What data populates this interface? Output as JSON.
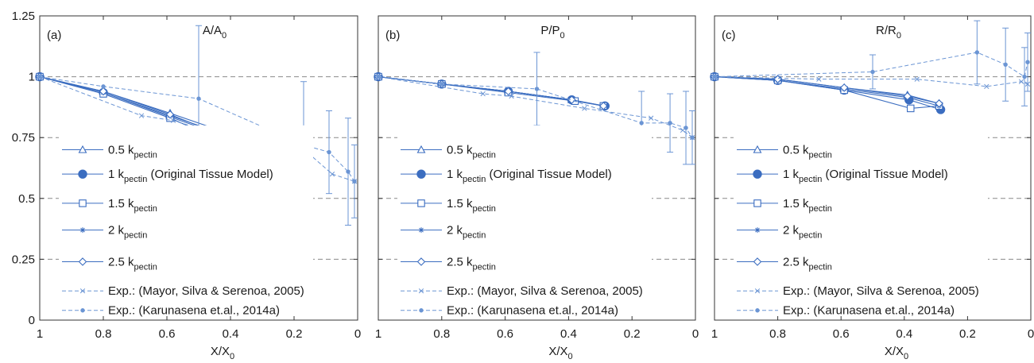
{
  "figure": {
    "colors": {
      "series": "#3b6dc0",
      "exp": "#6b95d4",
      "refline": "#8a8a8a",
      "axis": "#333333",
      "legend_box": "#ffffff"
    }
  },
  "chart_data": [
    {
      "type": "line",
      "panel_label": "(a)",
      "title": "A/A",
      "title_sub": "0",
      "xlabel": "X/X",
      "xlabel_sub": "0",
      "xlim": [
        1,
        0
      ],
      "ylim": [
        0,
        1.25
      ],
      "xticks": [
        1,
        0.8,
        0.6,
        0.4,
        0.2,
        0
      ],
      "yticks": [
        0,
        0.25,
        0.5,
        0.75,
        1,
        1.25
      ],
      "ytick_labels": [
        "0",
        "0.25",
        "0.5",
        "0.75",
        "1",
        "1.25"
      ],
      "reference_lines_y": [
        1,
        0.75,
        0.5,
        0.25
      ],
      "show_y_tick_labels": true,
      "series": [
        {
          "name": "0.5 k",
          "name_sub": "pectin",
          "marker": "triangle",
          "line": "solid",
          "x": [
            1,
            0.8,
            0.59,
            0.39,
            0.29
          ],
          "y": [
            1,
            0.94,
            0.85,
            0.76,
            0.69
          ]
        },
        {
          "name": "1 k",
          "name_sub": "pectin",
          "name_suffix": " (Original Tissue Model)",
          "marker": "filled-circle",
          "line": "solid",
          "x": [
            1,
            0.8,
            0.59,
            0.385,
            0.285
          ],
          "y": [
            1,
            0.935,
            0.835,
            0.74,
            0.67
          ]
        },
        {
          "name": "1.5 k",
          "name_sub": "pectin",
          "marker": "square",
          "line": "solid",
          "x": [
            1,
            0.8,
            0.59,
            0.38,
            0.29
          ],
          "y": [
            1,
            0.93,
            0.83,
            0.71,
            0.68
          ]
        },
        {
          "name": "2 k",
          "name_sub": "pectin",
          "marker": "star",
          "line": "solid",
          "x": [
            1,
            0.8,
            0.59,
            0.39,
            0.29
          ],
          "y": [
            1,
            0.935,
            0.84,
            0.75,
            0.68
          ]
        },
        {
          "name": "2.5 k",
          "name_sub": "pectin",
          "marker": "diamond",
          "line": "solid",
          "x": [
            1,
            0.8,
            0.59,
            0.39,
            0.29
          ],
          "y": [
            1,
            0.94,
            0.845,
            0.74,
            0.69
          ]
        },
        {
          "name": "Exp.: (Mayor, Silva & Serenoa, 2005)",
          "marker": "x",
          "line": "dashed",
          "x": [
            1,
            0.68,
            0.58,
            0.38,
            0.15,
            0.08,
            0.01
          ],
          "y": [
            1,
            0.84,
            0.82,
            0.74,
            0.68,
            0.6,
            0.57
          ]
        },
        {
          "name": "Exp.: (Karunasena et.al., 2014a)",
          "marker": "dot",
          "line": "dashed",
          "x": [
            1,
            0.8,
            0.5,
            0.17,
            0.09,
            0.03,
            0.01
          ],
          "y": [
            1,
            0.96,
            0.91,
            0.72,
            0.69,
            0.61,
            0.57
          ],
          "err": [
            0,
            0,
            0.3,
            0.26,
            0.17,
            0.22,
            0.15
          ]
        }
      ]
    },
    {
      "type": "line",
      "panel_label": "(b)",
      "title": "P/P",
      "title_sub": "0",
      "xlabel": "X/X",
      "xlabel_sub": "0",
      "xlim": [
        1,
        0
      ],
      "ylim": [
        0,
        1.25
      ],
      "xticks": [
        1,
        0.8,
        0.6,
        0.4,
        0.2,
        0
      ],
      "yticks": [
        0,
        0.25,
        0.5,
        0.75,
        1,
        1.25
      ],
      "reference_lines_y": [
        1,
        0.75,
        0.5,
        0.25
      ],
      "show_y_tick_labels": false,
      "series": [
        {
          "name": "0.5 k",
          "name_sub": "pectin",
          "marker": "triangle",
          "line": "solid",
          "x": [
            1,
            0.8,
            0.59,
            0.39,
            0.29
          ],
          "y": [
            1,
            0.97,
            0.94,
            0.905,
            0.88
          ]
        },
        {
          "name": "1 k",
          "name_sub": "pectin",
          "name_suffix": " (Original Tissue Model)",
          "marker": "filled-circle",
          "line": "solid",
          "x": [
            1,
            0.8,
            0.59,
            0.39,
            0.285
          ],
          "y": [
            1,
            0.97,
            0.94,
            0.905,
            0.88
          ]
        },
        {
          "name": "1.5 k",
          "name_sub": "pectin",
          "marker": "square",
          "line": "solid",
          "x": [
            1,
            0.8,
            0.59,
            0.38,
            0.29
          ],
          "y": [
            1,
            0.97,
            0.935,
            0.9,
            0.88
          ]
        },
        {
          "name": "2 k",
          "name_sub": "pectin",
          "marker": "star",
          "line": "solid",
          "x": [
            1,
            0.8,
            0.59,
            0.39,
            0.29
          ],
          "y": [
            1,
            0.97,
            0.94,
            0.905,
            0.88
          ]
        },
        {
          "name": "2.5 k",
          "name_sub": "pectin",
          "marker": "diamond",
          "line": "solid",
          "x": [
            1,
            0.8,
            0.59,
            0.39,
            0.29
          ],
          "y": [
            1,
            0.97,
            0.94,
            0.905,
            0.88
          ]
        },
        {
          "name": "Exp.: (Mayor, Silva & Serenoa, 2005)",
          "marker": "x",
          "line": "dashed",
          "x": [
            1,
            0.67,
            0.58,
            0.35,
            0.14,
            0.04,
            0.01
          ],
          "y": [
            1,
            0.93,
            0.92,
            0.87,
            0.83,
            0.78,
            0.75
          ]
        },
        {
          "name": "Exp.: (Karunasena et.al., 2014a)",
          "marker": "dot",
          "line": "dashed",
          "x": [
            1,
            0.8,
            0.5,
            0.17,
            0.08,
            0.03,
            0.01
          ],
          "y": [
            1,
            0.97,
            0.95,
            0.81,
            0.81,
            0.79,
            0.75
          ],
          "err": [
            0,
            0,
            0.15,
            0.13,
            0.12,
            0.15,
            0.11
          ]
        }
      ]
    },
    {
      "type": "line",
      "panel_label": "(c)",
      "title": "R/R",
      "title_sub": "0",
      "xlabel": "X/X",
      "xlabel_sub": "0",
      "xlim": [
        1,
        0
      ],
      "ylim": [
        0,
        1.25
      ],
      "xticks": [
        1,
        0.8,
        0.6,
        0.4,
        0.2,
        0
      ],
      "yticks": [
        0,
        0.25,
        0.5,
        0.75,
        1,
        1.25
      ],
      "reference_lines_y": [
        1,
        0.75,
        0.5,
        0.25
      ],
      "show_y_tick_labels": false,
      "series": [
        {
          "name": "0.5 k",
          "name_sub": "pectin",
          "marker": "triangle",
          "line": "solid",
          "x": [
            1,
            0.8,
            0.59,
            0.39,
            0.29
          ],
          "y": [
            1,
            0.99,
            0.955,
            0.925,
            0.89
          ]
        },
        {
          "name": "1 k",
          "name_sub": "pectin",
          "name_suffix": " (Original Tissue Model)",
          "marker": "filled-circle",
          "line": "solid",
          "x": [
            1,
            0.8,
            0.59,
            0.385,
            0.285
          ],
          "y": [
            1,
            0.985,
            0.945,
            0.905,
            0.865
          ]
        },
        {
          "name": "1.5 k",
          "name_sub": "pectin",
          "marker": "square",
          "line": "solid",
          "x": [
            1,
            0.8,
            0.59,
            0.38,
            0.29
          ],
          "y": [
            1,
            0.985,
            0.945,
            0.87,
            0.88
          ]
        },
        {
          "name": "2 k",
          "name_sub": "pectin",
          "marker": "star",
          "line": "solid",
          "x": [
            1,
            0.8,
            0.59,
            0.39,
            0.29
          ],
          "y": [
            1,
            0.985,
            0.95,
            0.915,
            0.88
          ]
        },
        {
          "name": "2.5 k",
          "name_sub": "pectin",
          "marker": "diamond",
          "line": "solid",
          "x": [
            1,
            0.8,
            0.59,
            0.39,
            0.29
          ],
          "y": [
            1,
            0.99,
            0.955,
            0.92,
            0.89
          ]
        },
        {
          "name": "Exp.: (Mayor, Silva & Serenoa, 2005)",
          "marker": "x",
          "line": "dashed",
          "x": [
            1,
            0.67,
            0.36,
            0.14,
            0.03,
            0.01
          ],
          "y": [
            1,
            0.99,
            0.99,
            0.96,
            0.98,
            0.97
          ]
        },
        {
          "name": "Exp.: (Karunasena et.al., 2014a)",
          "marker": "dot",
          "line": "dashed",
          "x": [
            1,
            0.5,
            0.17,
            0.08,
            0.02,
            0.01
          ],
          "y": [
            1,
            1.02,
            1.1,
            1.05,
            1.0,
            1.06
          ],
          "err": [
            0,
            0.07,
            0.13,
            0.15,
            0.12,
            0.12
          ]
        }
      ]
    }
  ]
}
